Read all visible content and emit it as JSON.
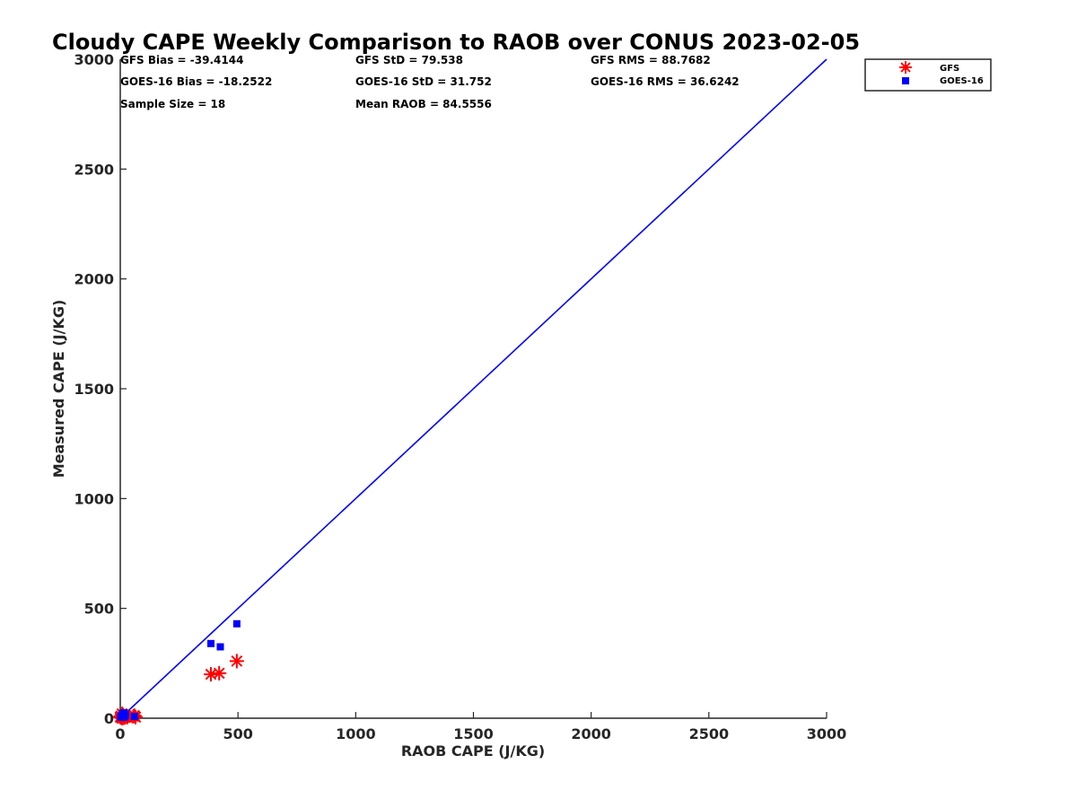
{
  "chart_data": {
    "type": "scatter",
    "title": "Cloudy CAPE Weekly Comparison to RAOB over CONUS 2023-02-05",
    "xlabel": "RAOB CAPE (J/KG)",
    "ylabel": "Measured CAPE (J/KG)",
    "xlim": [
      0,
      3000
    ],
    "ylim": [
      0,
      3000
    ],
    "xticks": [
      "0",
      "500",
      "1000",
      "1500",
      "2000",
      "2500",
      "3000"
    ],
    "yticks": [
      "0",
      "500",
      "1000",
      "1500",
      "2000",
      "2500",
      "3000"
    ],
    "grid": false,
    "legend_position": "top-right",
    "reference_line": {
      "x": [
        0,
        3000
      ],
      "y": [
        0,
        3000
      ],
      "color": "#0000ff"
    },
    "stats": [
      "GFS Bias = -39.4144",
      "GFS StD = 79.538",
      "GFS RMS = 88.7682",
      "GOES-16 Bias = -18.2522",
      "GOES-16 StD = 31.752",
      "GOES-16 RMS = 36.6242",
      "Sample Size = 18",
      "Mean RAOB = 84.5556"
    ],
    "series": [
      {
        "name": "GFS",
        "marker": "asterisk",
        "color": "#ff0000",
        "points": [
          [
            0,
            5
          ],
          [
            3,
            10
          ],
          [
            5,
            2
          ],
          [
            8,
            20
          ],
          [
            10,
            0
          ],
          [
            12,
            15
          ],
          [
            15,
            5
          ],
          [
            18,
            8
          ],
          [
            20,
            3
          ],
          [
            25,
            10
          ],
          [
            30,
            5
          ],
          [
            55,
            8
          ],
          [
            60,
            12
          ],
          [
            65,
            5
          ],
          [
            385,
            200
          ],
          [
            420,
            205
          ],
          [
            495,
            260
          ]
        ]
      },
      {
        "name": "GOES-16",
        "marker": "square",
        "color": "#0000ff",
        "points": [
          [
            2,
            5
          ],
          [
            5,
            10
          ],
          [
            8,
            15
          ],
          [
            10,
            20
          ],
          [
            12,
            8
          ],
          [
            15,
            25
          ],
          [
            18,
            5
          ],
          [
            20,
            12
          ],
          [
            22,
            18
          ],
          [
            60,
            8
          ],
          [
            385,
            340
          ],
          [
            425,
            325
          ],
          [
            495,
            430
          ]
        ]
      }
    ]
  }
}
